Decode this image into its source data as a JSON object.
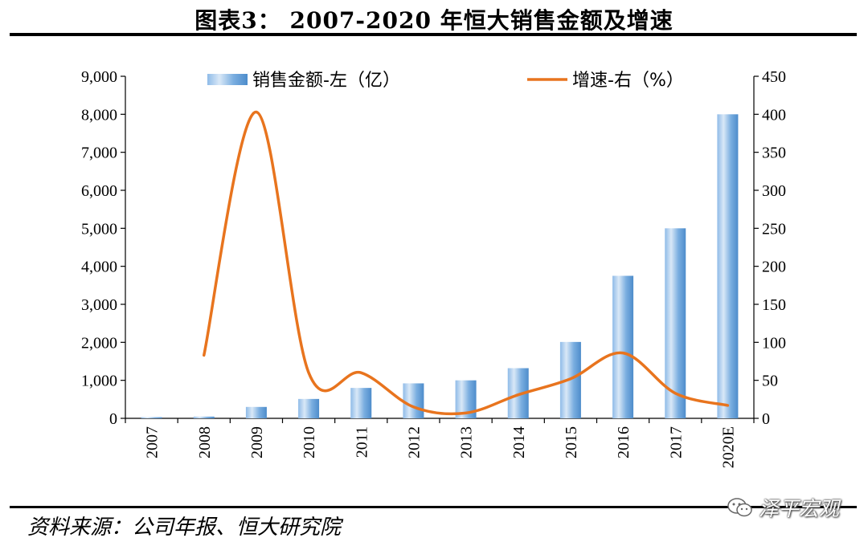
{
  "header": {
    "title": "图表3： 2007-2020 年恒大销售金额及增速"
  },
  "footer": {
    "source": "资料来源：公司年报、恒大研究院",
    "watermark": "泽平宏观"
  },
  "colors": {
    "bar_top": "#cfe2f5",
    "bar_mid": "#5f9bd6",
    "line": "#e8741e",
    "axis": "#000000"
  },
  "chart_data": {
    "type": "bar+line",
    "categories": [
      "2007",
      "2008",
      "2009",
      "2010",
      "2011",
      "2012",
      "2013",
      "2014",
      "2015",
      "2016",
      "2017",
      "2020E"
    ],
    "series": [
      {
        "name": "销售金额-左（亿）",
        "axis": "left",
        "kind": "bar",
        "values": [
          30,
          45,
          300,
          510,
          800,
          920,
          1000,
          1320,
          2010,
          3750,
          5000,
          8000
        ]
      },
      {
        "name": "增速-右（%）",
        "axis": "right",
        "kind": "line",
        "values": [
          null,
          83,
          403,
          60,
          60,
          15,
          7,
          31,
          52,
          86,
          33,
          17
        ]
      }
    ],
    "left_axis": {
      "min": 0,
      "max": 9000,
      "step": 1000,
      "tick_labels": [
        "0",
        "1,000",
        "2,000",
        "3,000",
        "4,000",
        "5,000",
        "6,000",
        "7,000",
        "8,000",
        "9,000"
      ]
    },
    "right_axis": {
      "min": 0,
      "max": 450,
      "step": 50,
      "tick_labels": [
        "0",
        "50",
        "100",
        "150",
        "200",
        "250",
        "300",
        "350",
        "400",
        "450"
      ]
    },
    "legend": [
      "销售金额-左（亿）",
      "增速-右（%）"
    ],
    "legend_position": "top",
    "grid": false
  }
}
